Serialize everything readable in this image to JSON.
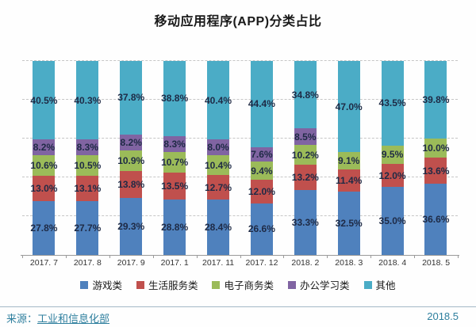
{
  "title": "移动应用程序(APP)分类占比",
  "footer": {
    "source_prefix": "来源：",
    "source_link": "工业和信息化部",
    "date": "2018.5"
  },
  "colors": {
    "games_blue": "#4F81BD",
    "life_red": "#C0504D",
    "ecommerce_green": "#9BBB59",
    "office_purple": "#8064A2",
    "other_teal": "#4BACC6",
    "label_text": "#1e2a45",
    "footer_teal": "#2e7f9e"
  },
  "chart_data": {
    "type": "bar",
    "stacked": true,
    "grid": true,
    "ylim": [
      0,
      100
    ],
    "unit": "%",
    "legend_position": "bottom",
    "categories": [
      "2017. 7",
      "2017. 8",
      "2017. 9",
      "2017. 1",
      "2017. 11",
      "2017. 12",
      "2018. 2",
      "2018. 3",
      "2018. 4",
      "2018. 5"
    ],
    "series": [
      {
        "name": "游戏类",
        "color": "#4F81BD",
        "values": [
          27.8,
          27.7,
          29.3,
          28.8,
          28.4,
          26.6,
          33.3,
          32.5,
          35.0,
          36.6
        ]
      },
      {
        "name": "生活服务类",
        "color": "#C0504D",
        "values": [
          13.0,
          13.1,
          13.8,
          13.5,
          12.7,
          12.0,
          13.2,
          11.4,
          12.0,
          13.6
        ]
      },
      {
        "name": "电子商务类",
        "color": "#9BBB59",
        "values": [
          10.6,
          10.5,
          10.9,
          10.7,
          10.4,
          9.4,
          10.2,
          9.1,
          9.5,
          10.0
        ]
      },
      {
        "name": "办公学习类",
        "color": "#8064A2",
        "values": [
          8.2,
          8.3,
          8.2,
          8.3,
          8.0,
          7.6,
          8.5,
          null,
          null,
          null
        ]
      },
      {
        "name": "其他",
        "color": "#4BACC6",
        "values": [
          40.5,
          40.3,
          37.8,
          38.8,
          40.4,
          44.4,
          34.8,
          47.0,
          43.5,
          39.8
        ]
      }
    ]
  }
}
